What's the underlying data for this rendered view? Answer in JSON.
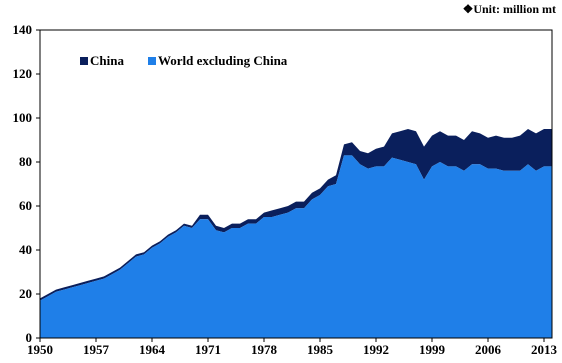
{
  "unit_note": "❖Unit: million mt",
  "colors": {
    "china": "#0a1f5c",
    "world_excluding_china": "#1f7fe8"
  },
  "chart_data": {
    "type": "area",
    "stacked": true,
    "title": "",
    "xlabel": "",
    "ylabel": "",
    "unit": "million mt",
    "xlim": [
      1950,
      2014
    ],
    "ylim": [
      0,
      140
    ],
    "yticks": [
      0,
      20,
      40,
      60,
      80,
      100,
      120,
      140
    ],
    "xticks": [
      1950,
      1957,
      1964,
      1971,
      1978,
      1985,
      1992,
      1999,
      2006,
      2013
    ],
    "legend_position": "top-left",
    "grid": false,
    "x": [
      1950,
      1951,
      1952,
      1953,
      1954,
      1955,
      1956,
      1957,
      1958,
      1959,
      1960,
      1961,
      1962,
      1963,
      1964,
      1965,
      1966,
      1967,
      1968,
      1969,
      1970,
      1971,
      1972,
      1973,
      1974,
      1975,
      1976,
      1977,
      1978,
      1979,
      1980,
      1981,
      1982,
      1983,
      1984,
      1985,
      1986,
      1987,
      1988,
      1989,
      1990,
      1991,
      1992,
      1993,
      1994,
      1995,
      1996,
      1997,
      1998,
      1999,
      2000,
      2001,
      2002,
      2003,
      2004,
      2005,
      2006,
      2007,
      2008,
      2009,
      2010,
      2011,
      2012,
      2013,
      2014
    ],
    "series": [
      {
        "name": "World excluding China",
        "values": [
          17,
          19,
          21,
          22,
          23,
          24,
          25,
          26,
          27,
          29,
          31,
          34,
          37,
          38,
          41,
          43,
          46,
          48,
          51,
          50,
          54,
          54,
          49,
          48,
          50,
          50,
          52,
          52,
          55,
          55,
          56,
          57,
          59,
          59,
          63,
          65,
          69,
          70,
          83,
          83,
          79,
          77,
          78,
          78,
          82,
          81,
          80,
          79,
          72,
          78,
          80,
          78,
          78,
          76,
          79,
          79,
          77,
          77,
          76,
          76,
          76,
          79,
          76,
          78,
          78
        ]
      },
      {
        "name": "China",
        "values": [
          1,
          1,
          1,
          1,
          1,
          1,
          1,
          1,
          1,
          1,
          1,
          1,
          1,
          1,
          1,
          1,
          1,
          1,
          1,
          1,
          2,
          2,
          2,
          2,
          2,
          2,
          2,
          2,
          2,
          3,
          3,
          3,
          3,
          3,
          3,
          3,
          3,
          4,
          5,
          6,
          6,
          7,
          8,
          9,
          11,
          13,
          15,
          15,
          15,
          14,
          14,
          14,
          14,
          14,
          15,
          14,
          14,
          15,
          15,
          15,
          16,
          16,
          17,
          17,
          17
        ]
      }
    ]
  }
}
